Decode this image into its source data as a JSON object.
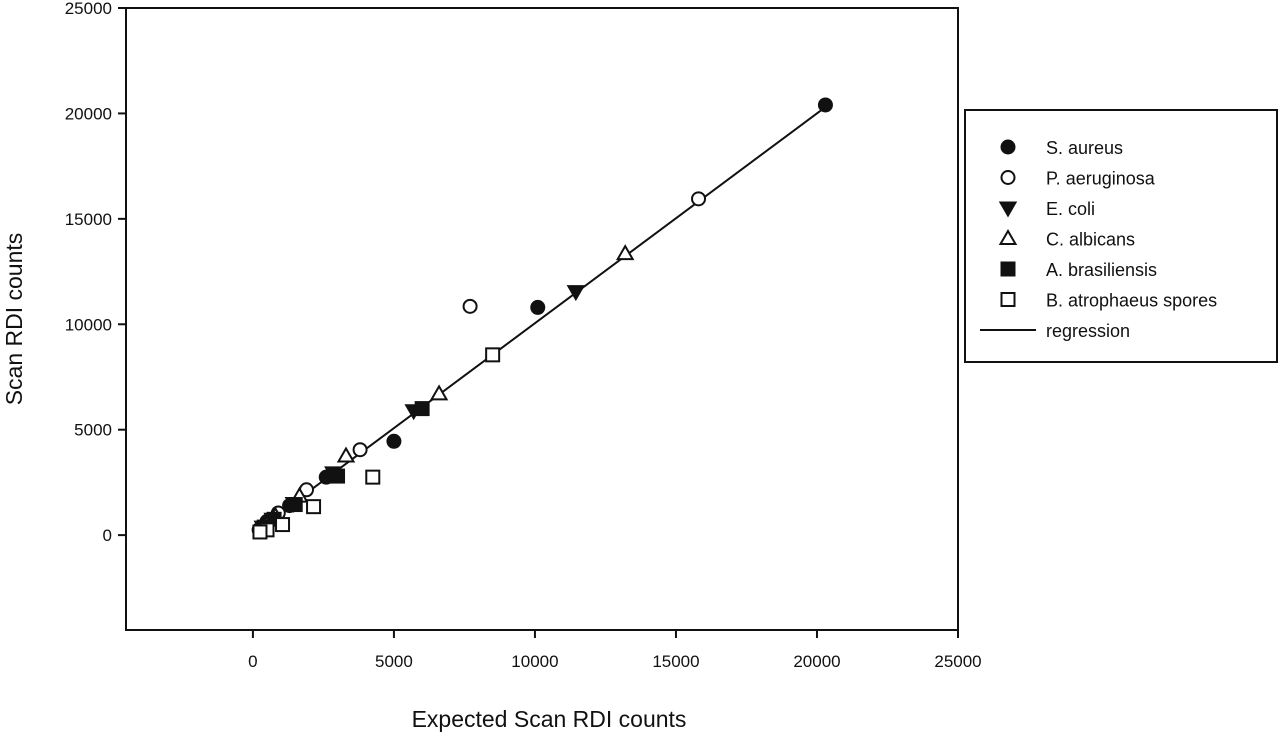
{
  "chart_data": {
    "type": "scatter",
    "xlabel": "Expected Scan RDI counts",
    "ylabel": "Scan RDI counts",
    "xlim": [
      -4500,
      25000
    ],
    "ylim": [
      -4500,
      25000
    ],
    "xticks": [
      0,
      5000,
      10000,
      15000,
      20000,
      25000
    ],
    "yticks": [
      0,
      5000,
      10000,
      15000,
      20000,
      25000
    ],
    "grid": false,
    "legend_position": "right",
    "series": [
      {
        "name": "S. aureus",
        "marker": "filled-circle",
        "points": [
          [
            20300,
            20400
          ],
          [
            10100,
            10800
          ],
          [
            5000,
            4450
          ],
          [
            2600,
            2750
          ],
          [
            1300,
            1400
          ],
          [
            500,
            650
          ],
          [
            250,
            300
          ]
        ]
      },
      {
        "name": "P. aeruginosa",
        "marker": "open-circle",
        "points": [
          [
            15800,
            15950
          ],
          [
            7700,
            10850
          ],
          [
            3800,
            4050
          ],
          [
            1900,
            2150
          ],
          [
            900,
            1050
          ],
          [
            450,
            500
          ],
          [
            220,
            250
          ]
        ]
      },
      {
        "name": "E. coli",
        "marker": "filled-triangle-down",
        "points": [
          [
            11450,
            11550
          ],
          [
            5700,
            5900
          ],
          [
            2850,
            2950
          ],
          [
            1450,
            1500
          ],
          [
            700,
            750
          ],
          [
            350,
            380
          ]
        ]
      },
      {
        "name": "C. albicans",
        "marker": "open-triangle-up",
        "points": [
          [
            13200,
            13350
          ],
          [
            6600,
            6700
          ],
          [
            3300,
            3750
          ],
          [
            1650,
            1850
          ],
          [
            800,
            900
          ],
          [
            400,
            450
          ]
        ]
      },
      {
        "name": "A. brasiliensis",
        "marker": "filled-square",
        "points": [
          [
            6000,
            6000
          ],
          [
            3000,
            2800
          ],
          [
            1500,
            1450
          ],
          [
            750,
            750
          ],
          [
            400,
            380
          ]
        ]
      },
      {
        "name": "B. atrophaeus spores",
        "marker": "open-square",
        "points": [
          [
            8500,
            8550
          ],
          [
            4250,
            2750
          ],
          [
            2150,
            1350
          ],
          [
            1050,
            500
          ],
          [
            500,
            250
          ],
          [
            250,
            150
          ]
        ]
      }
    ],
    "regression": {
      "name": "regression",
      "from": [
        0,
        100
      ],
      "to": [
        20300,
        20300
      ]
    }
  }
}
